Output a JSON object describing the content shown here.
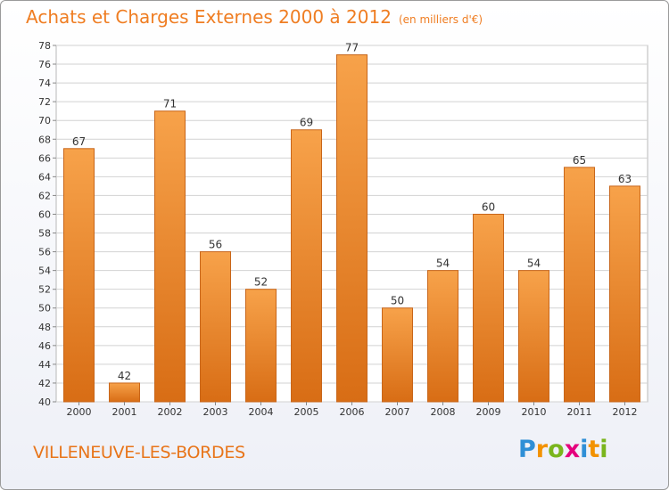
{
  "chart_data": {
    "type": "bar",
    "title": "Achats et Charges Externes 2000 à 2012",
    "subtitle": "(en milliers d'€)",
    "categories": [
      "2000",
      "2001",
      "2002",
      "2003",
      "2004",
      "2005",
      "2006",
      "2007",
      "2008",
      "2009",
      "2010",
      "2011",
      "2012"
    ],
    "values": [
      67,
      42,
      71,
      56,
      52,
      69,
      77,
      50,
      54,
      60,
      54,
      65,
      63
    ],
    "ylim": [
      40,
      78
    ],
    "yticks": [
      40,
      42,
      44,
      46,
      48,
      50,
      52,
      54,
      56,
      58,
      60,
      62,
      64,
      66,
      68,
      70,
      72,
      74,
      76,
      78
    ],
    "xlabel": "",
    "ylabel": "",
    "grid": true,
    "bar_color_top": "#f7a24a",
    "bar_color_bottom": "#d86d15",
    "bar_edge_color": "#c8661a"
  },
  "footer": {
    "city": "VILLENEUVE-LES-BORDES",
    "brand_letters": [
      {
        "ch": "P",
        "color": "#2f8fd6"
      },
      {
        "ch": "r",
        "color": "#f39200"
      },
      {
        "ch": "o",
        "color": "#7ab51d"
      },
      {
        "ch": "x",
        "color": "#e5007d"
      },
      {
        "ch": "i",
        "color": "#2f8fd6"
      },
      {
        "ch": "t",
        "color": "#f39200"
      },
      {
        "ch": "i",
        "color": "#7ab51d"
      }
    ]
  }
}
